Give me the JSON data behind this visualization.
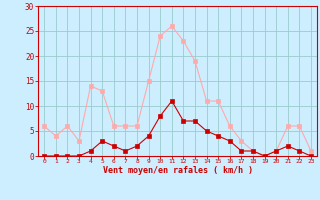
{
  "x": [
    0,
    1,
    2,
    3,
    4,
    5,
    6,
    7,
    8,
    9,
    10,
    11,
    12,
    13,
    14,
    15,
    16,
    17,
    18,
    19,
    20,
    21,
    22,
    23
  ],
  "avg_wind": [
    0,
    0,
    0,
    0,
    1,
    3,
    2,
    1,
    2,
    4,
    8,
    11,
    7,
    7,
    5,
    4,
    3,
    1,
    1,
    0,
    1,
    2,
    1,
    0
  ],
  "gust_wind": [
    6,
    4,
    6,
    3,
    14,
    13,
    6,
    6,
    6,
    15,
    24,
    26,
    23,
    19,
    11,
    11,
    6,
    3,
    1,
    0,
    1,
    6,
    6,
    1
  ],
  "avg_color": "#cc0000",
  "gust_color": "#ffaaaa",
  "bg_color": "#cceeff",
  "grid_color": "#99cccc",
  "xlabel": "Vent moyen/en rafales ( km/h )",
  "xlabel_color": "#cc0000",
  "ytick_labels": [
    "0",
    "5",
    "10",
    "15",
    "20",
    "25",
    "30"
  ],
  "ytick_vals": [
    0,
    5,
    10,
    15,
    20,
    25,
    30
  ],
  "ylim": [
    0,
    30
  ],
  "xlim": [
    -0.5,
    23.5
  ]
}
